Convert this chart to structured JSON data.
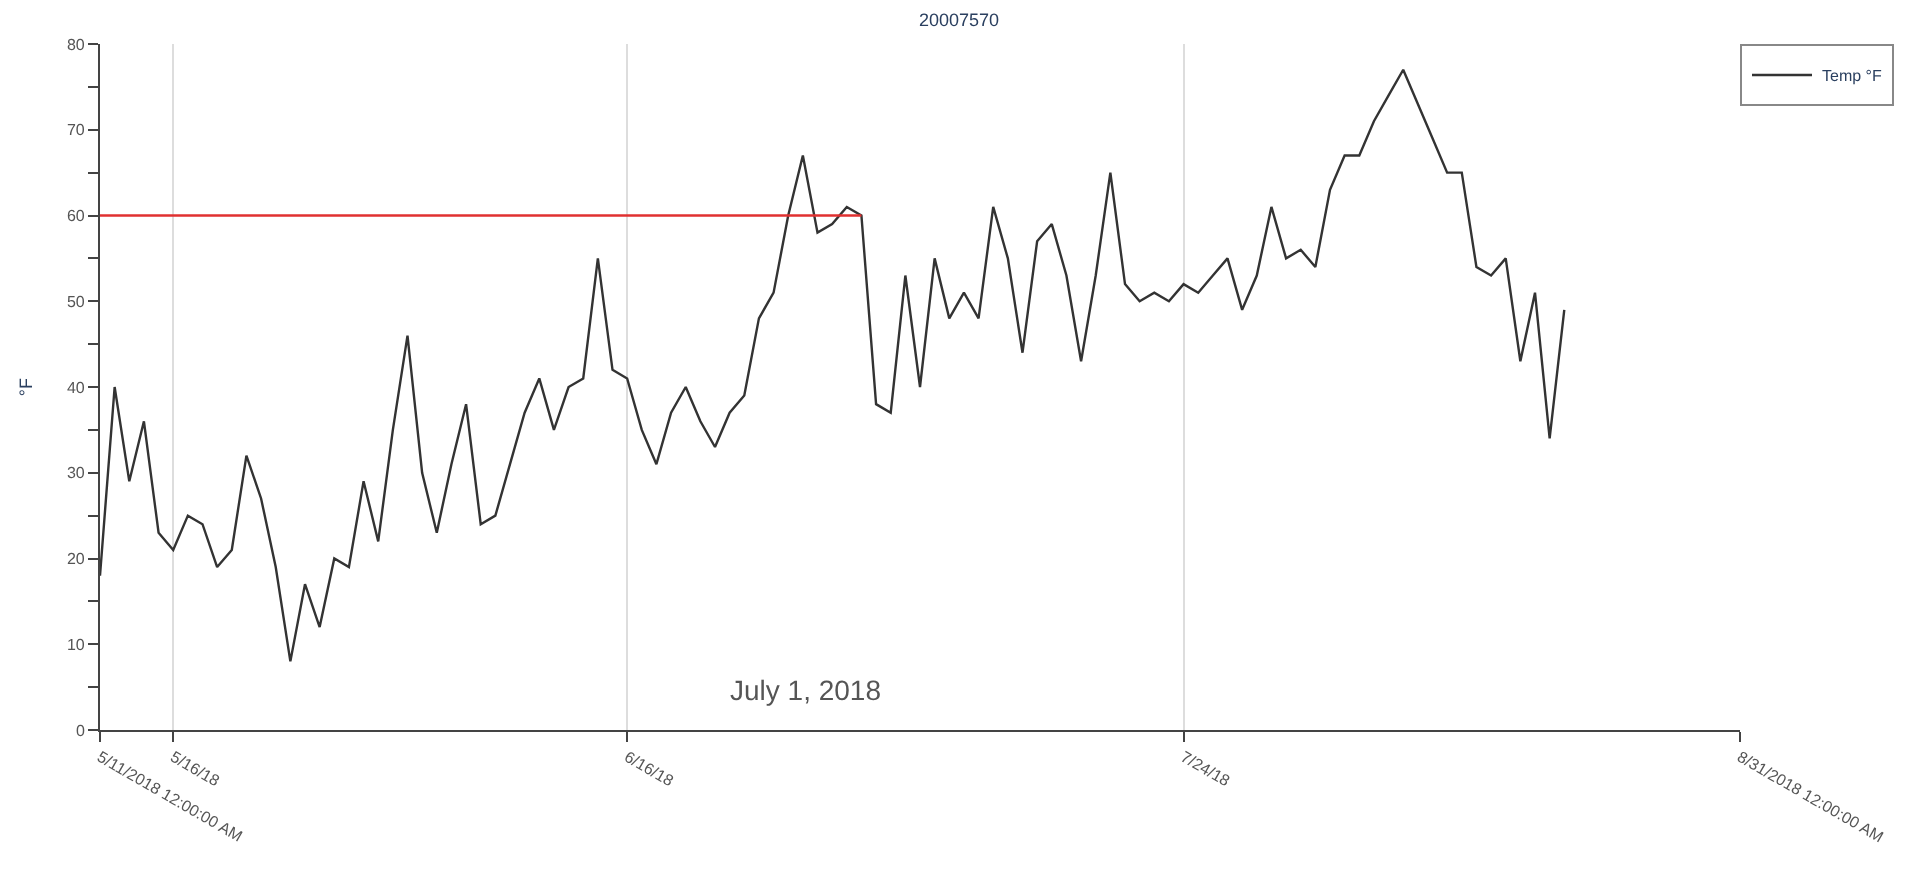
{
  "chart_data": {
    "type": "line",
    "title": "20007570",
    "ylabel": "°F",
    "annotations": [
      "July 1, 2018"
    ],
    "xlim": [
      "2018-05-11",
      "2018-08-31"
    ],
    "xticks": [
      {
        "value": "2018-05-11",
        "label": "5/11/2018 12:00:00 AM"
      },
      {
        "value": "2018-05-16",
        "label": "5/16/18"
      },
      {
        "value": "2018-06-16",
        "label": "6/16/18"
      },
      {
        "value": "2018-07-24",
        "label": "7/24/18"
      },
      {
        "value": "2018-08-31",
        "label": "8/31/2018 12:00:00 AM"
      }
    ],
    "ylim": [
      0,
      80
    ],
    "yticks": [
      0,
      {
        "value": 5,
        "label": null
      },
      10,
      {
        "value": 15,
        "label": null
      },
      20,
      {
        "value": 25,
        "label": null
      },
      30,
      {
        "value": 35,
        "label": null
      },
      40,
      {
        "value": 45,
        "label": null
      },
      50,
      {
        "value": 55,
        "label": null
      },
      60,
      {
        "value": 65,
        "label": null
      },
      70,
      {
        "value": 75,
        "label": null
      },
      80
    ],
    "grid": "x",
    "legend": "top right",
    "series": [
      {
        "name": "Temp °F",
        "color": "#333333",
        "x": [
          "2018-05-11",
          "2018-05-12",
          "2018-05-13",
          "2018-05-14",
          "2018-05-15",
          "2018-05-16",
          "2018-05-17",
          "2018-05-18",
          "2018-05-19",
          "2018-05-20",
          "2018-05-21",
          "2018-05-22",
          "2018-05-23",
          "2018-05-24",
          "2018-05-25",
          "2018-05-26",
          "2018-05-27",
          "2018-05-28",
          "2018-05-29",
          "2018-05-30",
          "2018-05-31",
          "2018-06-01",
          "2018-06-02",
          "2018-06-03",
          "2018-06-04",
          "2018-06-05",
          "2018-06-06",
          "2018-06-07",
          "2018-06-08",
          "2018-06-09",
          "2018-06-10",
          "2018-06-11",
          "2018-06-12",
          "2018-06-13",
          "2018-06-14",
          "2018-06-15",
          "2018-06-16",
          "2018-06-17",
          "2018-06-18",
          "2018-06-19",
          "2018-06-20",
          "2018-06-21",
          "2018-06-22",
          "2018-06-23",
          "2018-06-24",
          "2018-06-25",
          "2018-06-26",
          "2018-06-27",
          "2018-06-28",
          "2018-06-29",
          "2018-06-30",
          "2018-07-01",
          "2018-07-02",
          "2018-07-03",
          "2018-07-04",
          "2018-07-05",
          "2018-07-06",
          "2018-07-07",
          "2018-07-08",
          "2018-07-09",
          "2018-07-10",
          "2018-07-11",
          "2018-07-12",
          "2018-07-13",
          "2018-07-14",
          "2018-07-15",
          "2018-07-16",
          "2018-07-17",
          "2018-07-18",
          "2018-07-19",
          "2018-07-20",
          "2018-07-21",
          "2018-07-22",
          "2018-07-23",
          "2018-07-24",
          "2018-07-25",
          "2018-07-26",
          "2018-07-27",
          "2018-07-28",
          "2018-07-29",
          "2018-07-30",
          "2018-07-31",
          "2018-08-01",
          "2018-08-02",
          "2018-08-03",
          "2018-08-04",
          "2018-08-05",
          "2018-08-06",
          "2018-08-07",
          "2018-08-08",
          "2018-08-09",
          "2018-08-10",
          "2018-08-11",
          "2018-08-12",
          "2018-08-13",
          "2018-08-14",
          "2018-08-15",
          "2018-08-16",
          "2018-08-17",
          "2018-08-18",
          "2018-08-19"
        ],
        "values": [
          18,
          40,
          29,
          36,
          23,
          21,
          25,
          24,
          19,
          21,
          32,
          27,
          19,
          8,
          17,
          12,
          20,
          19,
          29,
          22,
          35,
          46,
          30,
          23,
          31,
          38,
          24,
          25,
          31,
          37,
          41,
          35,
          40,
          41,
          55,
          42,
          41,
          35,
          31,
          37,
          40,
          36,
          33,
          37,
          39,
          48,
          51,
          60,
          67,
          58,
          59,
          61,
          60,
          38,
          37,
          53,
          40,
          55,
          48,
          51,
          48,
          61,
          55,
          44,
          57,
          59,
          53,
          43,
          53,
          65,
          52,
          50,
          51,
          50,
          52,
          51,
          53,
          55,
          49,
          53,
          61,
          55,
          56,
          54,
          63,
          67,
          67,
          71,
          74,
          77,
          73,
          69,
          65,
          65,
          54,
          53,
          55,
          43,
          51,
          34,
          49
        ]
      },
      {
        "type": "line",
        "color": "#e03030",
        "x": [
          "2018-05-11",
          "2018-07-02"
        ],
        "values": [
          60,
          60
        ]
      }
    ]
  }
}
